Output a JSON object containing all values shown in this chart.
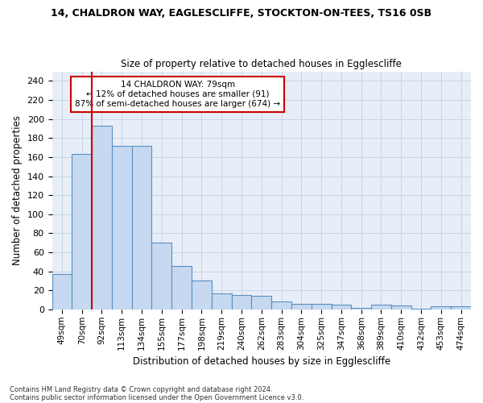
{
  "title1": "14, CHALDRON WAY, EAGLESCLIFFE, STOCKTON-ON-TEES, TS16 0SB",
  "title2": "Size of property relative to detached houses in Egglescliffe",
  "xlabel": "Distribution of detached houses by size in Egglescliffe",
  "ylabel": "Number of detached properties",
  "categories": [
    "49sqm",
    "70sqm",
    "92sqm",
    "113sqm",
    "134sqm",
    "155sqm",
    "177sqm",
    "198sqm",
    "219sqm",
    "240sqm",
    "262sqm",
    "283sqm",
    "304sqm",
    "325sqm",
    "347sqm",
    "368sqm",
    "389sqm",
    "410sqm",
    "432sqm",
    "453sqm",
    "474sqm"
  ],
  "values": [
    37,
    163,
    193,
    172,
    172,
    70,
    46,
    30,
    17,
    15,
    14,
    8,
    6,
    6,
    5,
    2,
    5,
    4,
    1,
    3,
    3
  ],
  "bar_color": "#c6d9f0",
  "bar_edge_color": "#5a8fc3",
  "vline_x": 1.5,
  "vline_color": "#cc0000",
  "annotation_text": "14 CHALDRON WAY: 79sqm\n← 12% of detached houses are smaller (91)\n87% of semi-detached houses are larger (674) →",
  "annotation_box_color": "white",
  "annotation_box_edge": "#cc0000",
  "ylim": [
    0,
    250
  ],
  "yticks": [
    0,
    20,
    40,
    60,
    80,
    100,
    120,
    140,
    160,
    180,
    200,
    220,
    240
  ],
  "grid_color": "#c8d4e8",
  "bg_color": "#e8eef8",
  "footer1": "Contains HM Land Registry data © Crown copyright and database right 2024.",
  "footer2": "Contains public sector information licensed under the Open Government Licence v3.0."
}
